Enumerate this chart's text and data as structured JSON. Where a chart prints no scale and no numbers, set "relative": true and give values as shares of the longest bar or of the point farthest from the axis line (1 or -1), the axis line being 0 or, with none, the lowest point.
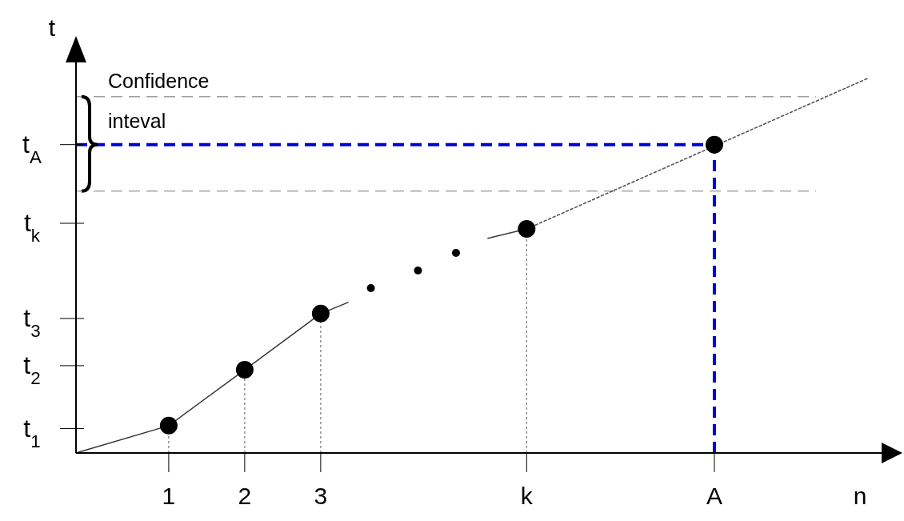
{
  "chart_data": {
    "type": "line",
    "relative": true,
    "xlabel": "n",
    "ylabel": "t",
    "xlim": [
      -0.22,
      10.57
    ],
    "xticks": [
      1,
      2,
      3,
      {
        "value": 5.71,
        "label": "k"
      },
      {
        "value": 8.18,
        "label": "A"
      }
    ],
    "annotations": [
      "Confidence inteval"
    ],
    "ref_lines": [
      {
        "axis": "y",
        "value": 0.065,
        "label": "t$_{1}$"
      },
      {
        "axis": "y",
        "value": 0.233,
        "label": "t$_{2}$"
      },
      {
        "axis": "y",
        "value": 0.359,
        "label": "t$_{3}$"
      },
      {
        "axis": "y",
        "value": 0.613,
        "label": "t$_{k}$"
      },
      {
        "axis": "y",
        "value": 0.823,
        "label": "t$_{A}$",
        "color": "#0000dd",
        "line_style": "dashed"
      },
      {
        "axis": "x",
        "value": 8.18,
        "color": "#0000dd",
        "line_style": "dashed"
      },
      {
        "axis": "y",
        "value": 0.951,
        "color": "#9e9e9e",
        "line_style": "dashed"
      },
      {
        "axis": "y",
        "value": 0.699,
        "color": "#a8a8a8",
        "line_style": "dashed"
      }
    ],
    "series": [
      {
        "color": "#333333",
        "line_style": "solid",
        "x": [
          -0.22,
          1,
          2,
          3,
          3.36
        ],
        "values": [
          0,
          0.073,
          0.222,
          0.372,
          0.402
        ]
      },
      {
        "color": "#3a3a3a",
        "line_style": "solid",
        "x": [
          5.2,
          5.71
        ],
        "values": [
          0.573,
          0.598
        ]
      },
      {
        "color": "#555555",
        "line_style": "dotted",
        "x": [
          5.71,
          10.2
        ],
        "values": [
          0.598,
          1.0
        ]
      },
      {
        "type": "scatter",
        "color": "#000000",
        "marker": "circle",
        "x": [
          1,
          2,
          3,
          5.71,
          8.18
        ],
        "values": [
          0.073,
          0.222,
          0.372,
          0.598,
          0.823
        ]
      },
      {
        "type": "scatter",
        "color": "#000000",
        "marker": "circle",
        "x": [
          3.66,
          4.28,
          4.78
        ],
        "values": [
          0.44,
          0.487,
          0.534
        ]
      }
    ]
  }
}
